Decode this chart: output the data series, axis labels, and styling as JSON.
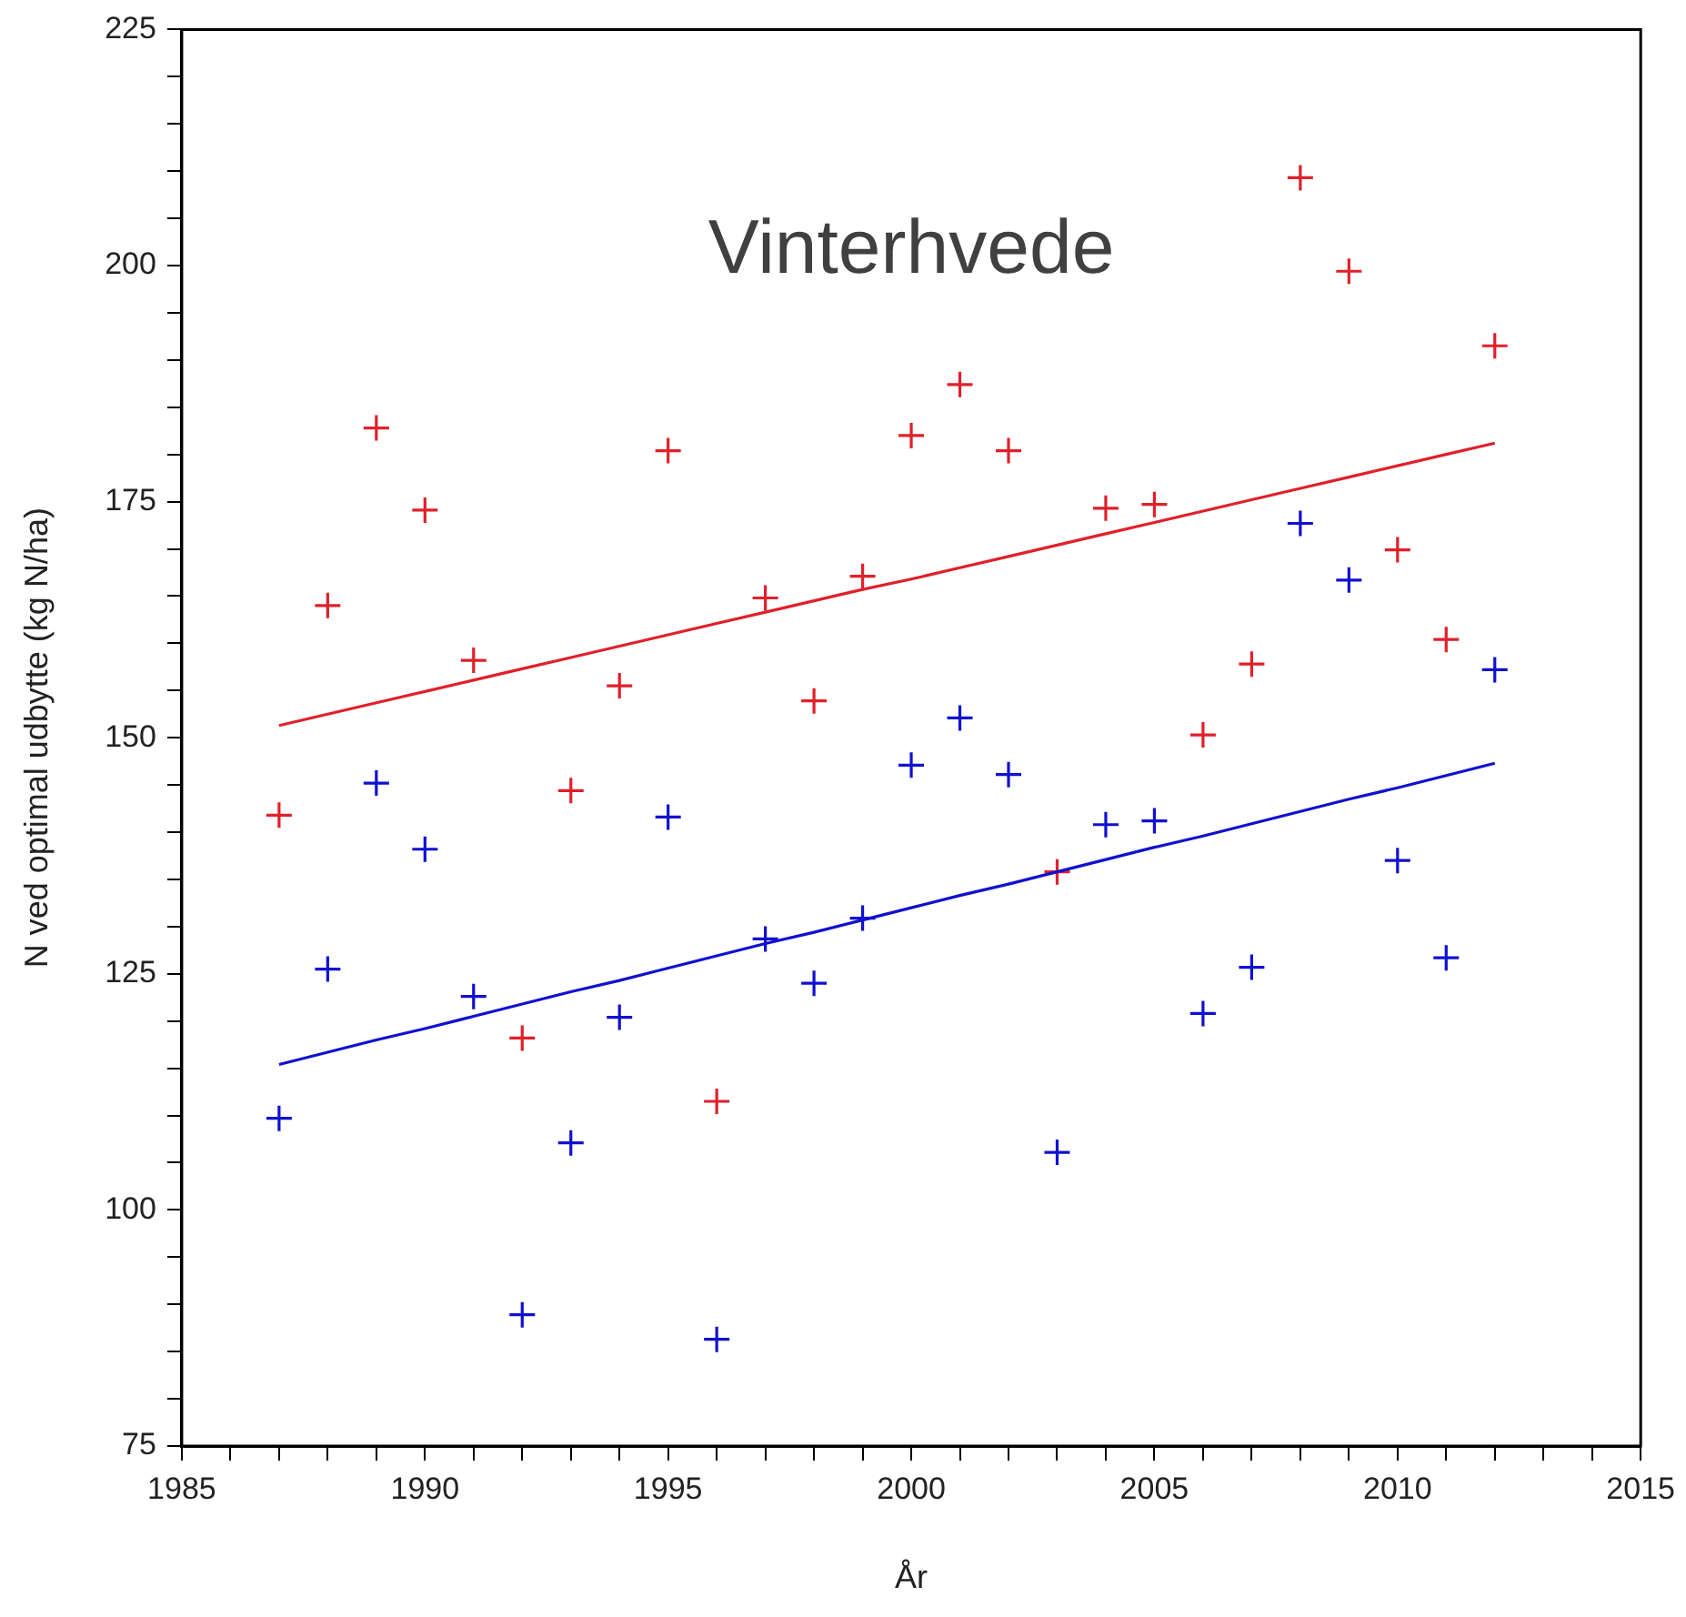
{
  "chart_data": {
    "type": "scatter",
    "title": "Vinterhvede",
    "xlabel": "År",
    "ylabel": "N ved optimal udbytte (kg N/ha)",
    "x": [
      1987,
      1988,
      1989,
      1990,
      1991,
      1992,
      1993,
      1994,
      1995,
      1996,
      1997,
      1998,
      1999,
      2000,
      2001,
      2002,
      2003,
      2004,
      2005,
      2006,
      2007,
      2008,
      2009,
      2010,
      2011,
      2012
    ],
    "series": [
      {
        "color": "#e0202a",
        "marker": "cross",
        "values": [
          141.8,
          164.0,
          182.8,
          174.1,
          158.2,
          118.2,
          144.4,
          155.5,
          180.4,
          111.5,
          164.8,
          153.9,
          167.1,
          182.0,
          187.4,
          180.4,
          135.8,
          174.3,
          174.7,
          150.3,
          157.8,
          209.3,
          199.4,
          169.9,
          160.4,
          191.5
        ]
      },
      {
        "color": "#1010d0",
        "marker": "cross",
        "values": [
          109.7,
          125.5,
          145.2,
          138.2,
          122.6,
          88.9,
          107.1,
          120.4,
          141.6,
          86.3,
          128.7,
          124.0,
          130.9,
          147.1,
          152.1,
          146.1,
          106.1,
          140.8,
          141.2,
          120.8,
          125.7,
          172.7,
          166.7,
          137.0,
          126.7,
          157.2
        ]
      },
      {
        "type": "line",
        "color": "#e0202a",
        "marker": "none",
        "values": [
          151.3,
          152.5,
          153.7,
          154.9,
          156.1,
          157.3,
          158.5,
          159.7,
          160.9,
          162.1,
          163.3,
          164.5,
          165.7,
          166.8,
          168.0,
          169.2,
          170.4,
          171.6,
          172.8,
          174.0,
          175.2,
          176.4,
          177.6,
          178.8,
          180.0,
          181.2
        ]
      },
      {
        "type": "line",
        "color": "#1010d0",
        "marker": "none",
        "values": [
          115.4,
          116.7,
          118.0,
          119.2,
          120.5,
          121.8,
          123.1,
          124.3,
          125.6,
          126.9,
          128.2,
          129.4,
          130.7,
          132.0,
          133.3,
          134.5,
          135.8,
          137.1,
          138.4,
          139.6,
          140.9,
          142.2,
          143.5,
          144.7,
          146.0,
          147.3
        ]
      }
    ],
    "xlim": [
      1985,
      2015
    ],
    "xticks": [
      1985,
      {
        "value": 1986,
        "label": null
      },
      {
        "value": 1987,
        "label": null
      },
      {
        "value": 1988,
        "label": null
      },
      {
        "value": 1989,
        "label": null
      },
      1990,
      {
        "value": 1991,
        "label": null
      },
      {
        "value": 1992,
        "label": null
      },
      {
        "value": 1993,
        "label": null
      },
      {
        "value": 1994,
        "label": null
      },
      1995,
      {
        "value": 1996,
        "label": null
      },
      {
        "value": 1997,
        "label": null
      },
      {
        "value": 1998,
        "label": null
      },
      {
        "value": 1999,
        "label": null
      },
      2000,
      {
        "value": 2001,
        "label": null
      },
      {
        "value": 2002,
        "label": null
      },
      {
        "value": 2003,
        "label": null
      },
      {
        "value": 2004,
        "label": null
      },
      2005,
      {
        "value": 2006,
        "label": null
      },
      {
        "value": 2007,
        "label": null
      },
      {
        "value": 2008,
        "label": null
      },
      {
        "value": 2009,
        "label": null
      },
      2010,
      {
        "value": 2011,
        "label": null
      },
      {
        "value": 2012,
        "label": null
      },
      {
        "value": 2013,
        "label": null
      },
      {
        "value": 2014,
        "label": null
      },
      2015
    ],
    "ylim": [
      75,
      225
    ],
    "yticks": [
      75,
      {
        "value": 80,
        "label": null
      },
      {
        "value": 85,
        "label": null
      },
      {
        "value": 90,
        "label": null
      },
      {
        "value": 95,
        "label": null
      },
      100,
      {
        "value": 105,
        "label": null
      },
      {
        "value": 110,
        "label": null
      },
      {
        "value": 115,
        "label": null
      },
      {
        "value": 120,
        "label": null
      },
      125,
      {
        "value": 130,
        "label": null
      },
      {
        "value": 135,
        "label": null
      },
      {
        "value": 140,
        "label": null
      },
      {
        "value": 145,
        "label": null
      },
      150,
      {
        "value": 155,
        "label": null
      },
      {
        "value": 160,
        "label": null
      },
      {
        "value": 165,
        "label": null
      },
      {
        "value": 170,
        "label": null
      },
      175,
      {
        "value": 180,
        "label": null
      },
      {
        "value": 185,
        "label": null
      },
      {
        "value": 190,
        "label": null
      },
      {
        "value": 195,
        "label": null
      },
      200,
      {
        "value": 205,
        "label": null
      },
      {
        "value": 210,
        "label": null
      },
      {
        "value": 215,
        "label": null
      },
      {
        "value": 220,
        "label": null
      },
      225
    ],
    "grid": false,
    "legend": false,
    "line_style": "solid"
  }
}
